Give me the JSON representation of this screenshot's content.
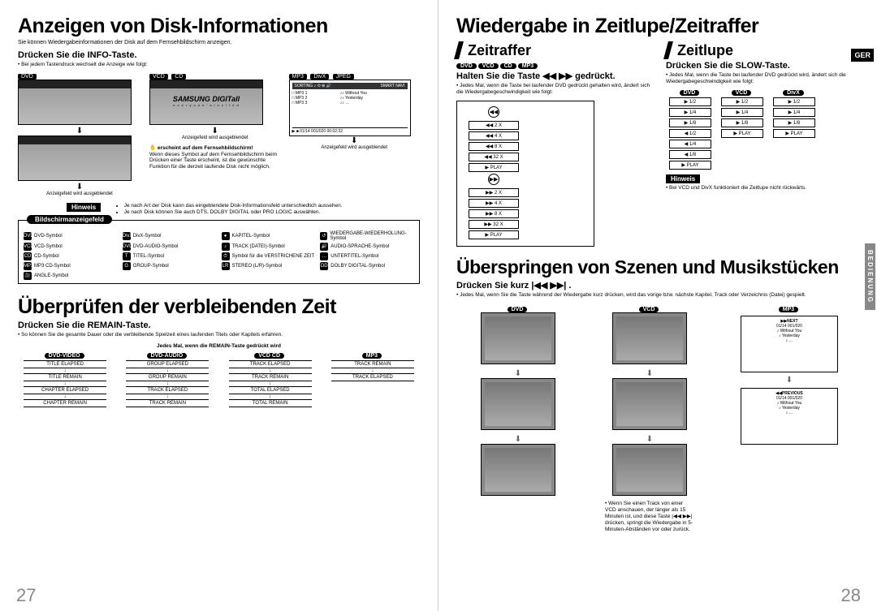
{
  "left": {
    "h1": "Anzeigen von Disk-Informationen",
    "h1sub": "Sie können Wiedergabeinformationen der Disk auf dem Fernsehbildschirm anzeigen.",
    "infoLine": "Drücken Sie die INFO-Taste.",
    "infoBullet": "• Bei jedem Tastendruck wechselt die Anzeige wie folgt:",
    "dvdTag": "DVD",
    "vcdTag": "VCD",
    "cdTag": "CD",
    "mp3Tag": "MP3",
    "divxTag": "DivX",
    "jpegTag": "JPEG",
    "ausblend": "Anzeigefeld wird ausgeblendet",
    "samsungLogo": "SAMSUNG DIGITall",
    "samsungSub": "e v e r y o n e ' s  i n v i t e d",
    "tvNote": "erscheint auf dem Fernsehbildschirm!",
    "tvNoteBody": "Wenn dieses Symbol auf dem Fernsehbildschirm beim Drücken einer Taste erscheint, ist die gewünschte Funktion für die derzeit laufende Disk nicht möglich.",
    "hinweis": "Hinweis",
    "hinweisBullets": [
      "Je nach Art der Disk kann das eingeblendete Disk-Informationsfeld unterschiedlich aussehen.",
      "Je nach Disk können Sie auch DTS, DOLBY DIGITAL oder PRO LOGIC auswählen."
    ],
    "symTab": "Bildschirmanzeigefeld",
    "symbols": [
      {
        "t": "DVD",
        "l": "DVD-Symbol"
      },
      {
        "t": "DivX",
        "l": "DivX-Symbol"
      },
      {
        "t": "●",
        "l": "KAPITEL-Symbol"
      },
      {
        "t": "↺",
        "l": "WIEDERGABE-WIEDERHOLUNG-Symbol"
      },
      {
        "t": "VCD",
        "l": "VCD-Symbol"
      },
      {
        "t": "DVD AUDIO",
        "l": "DVD-AUDIO-Symbol"
      },
      {
        "t": "♪",
        "l": "TRACK (DATEI)-Symbol"
      },
      {
        "t": "🔊",
        "l": "AUDIO-SPRACHE-Symbol"
      },
      {
        "t": "CD",
        "l": "CD-Symbol"
      },
      {
        "t": "T",
        "l": "TITEL-Symbol"
      },
      {
        "t": "⏱",
        "l": "Symbol für die VERSTRICHENE ZEIT"
      },
      {
        "t": "…",
        "l": "UNTERTITEL-Symbol"
      },
      {
        "t": "MP3",
        "l": "MP3 CD-Symbol"
      },
      {
        "t": "G",
        "l": "GROUP-Symbol"
      },
      {
        "t": "LR",
        "l": "STEREO (L/R)-Symbol"
      },
      {
        "t": "DD",
        "l": "DOLBY DIGITAL-Symbol"
      },
      {
        "t": "🎥",
        "l": "ANGLE-Symbol"
      }
    ],
    "h2": "Überprüfen der verbleibenden Zeit",
    "remainTitle": "Drücken Sie die REMAIN-Taste.",
    "remainBullet": "• So können Sie die gesamte Dauer oder die verbleibende Spielzeit eines laufenden Titels oder Kapitels erfahren.",
    "remainSub": "Jedes Mal, wenn die REMAIN-Taste gedrückt wird",
    "remainCols": [
      {
        "hdr": "DVD-VIDEO",
        "items": [
          "TITLE ELAPSED",
          "TITLE REMAIN",
          "CHAPTER ELAPSED",
          "CHAPTER REMAIN"
        ]
      },
      {
        "hdr": "DVD-AUDIO",
        "items": [
          "GROUP ELAPSED",
          "GROUP REMAIN",
          "TRACK ELAPSED",
          "TRACK REMAIN"
        ]
      },
      {
        "hdr": "VCD  CD",
        "items": [
          "TRACK ELAPSED",
          "TRACK REMAIN",
          "TOTAL ELAPSED",
          "TOTAL REMAIN"
        ]
      },
      {
        "hdr": "MP3",
        "items": [
          "TRACK REMAIN",
          "TRACK ELAPSED"
        ]
      }
    ],
    "pnum": "27"
  },
  "right": {
    "h1": "Wiedergabe in Zeitlupe/Zeitraffer",
    "zr": "Zeitraffer",
    "zl": "Zeitlupe",
    "zrTags": [
      "DVD",
      "VCD",
      "CD",
      "MP3"
    ],
    "zrLine": "Halten Sie die Taste ◀◀ ▶▶ gedrückt.",
    "zrBullet": "• Jedes Mal, wenn die Taste bei laufender DVD gedrückt gehalten wird, ändert sich die Wiedergabegeschwindigkeit wie folgt:",
    "speedsBack": [
      "◀◀ 2 X",
      "◀◀ 4 X",
      "◀◀ 8 X",
      "◀◀ 32 X",
      "▶ PLAY"
    ],
    "speedsFwd": [
      "▶▶ 2 X",
      "▶▶ 4 X",
      "▶▶ 8 X",
      "▶▶ 32 X",
      "▶ PLAY"
    ],
    "zlLine": "Drücken Sie die SLOW-Taste.",
    "zlBullet": "• Jedes Mal, wenn die Taste bei laufender DVD gedrückt wird, ändert sich die Wiedergabegeschwindigkeit wie folgt:",
    "slowCols": [
      {
        "hdr": "DVD",
        "items": [
          "▶ 1/2",
          "▶ 1/4",
          "▶ 1/8",
          "◀ 1/2",
          "◀ 1/4",
          "◀ 1/8",
          "▶ PLAY"
        ]
      },
      {
        "hdr": "VCD",
        "items": [
          "▶ 1/2",
          "▶ 1/4",
          "▶ 1/8",
          "▶ PLAY"
        ]
      },
      {
        "hdr": "DivX",
        "items": [
          "▶ 1/2",
          "▶ 1/4",
          "▶ 1/8",
          "▶ PLAY"
        ]
      }
    ],
    "hinweis": "Hinweis",
    "zlHinweis": "• Bei VCD und DivX funktioniert die Zeitlupe nicht rückwärts.",
    "skipH1": "Überspringen von Szenen und Musikstücken",
    "skipLine": "Drücken Sie kurz  |◀◀ ▶▶| .",
    "skipBullet": "• Jedes Mal, wenn Sie die Taste während der Wiedergabe kurz drücken, wird das vorige bzw. nächste Kapitel, Track oder Verzeichnis (Datei) gespielt.",
    "skipCols": [
      "DVD",
      "VCD",
      "MP3"
    ],
    "skipNote": "• Wenn Sie einen Track von einer VCD anschauen, der länger als 15 Minuten ist, und diese Taste  |◀◀ ▶▶|  drücken, springt die Wiedergabe in 5-Minuten-Abständen vor oder zurück.",
    "mp3Next": "▶▶NEXT",
    "mp3Prev": "◀◀PREVIOUS",
    "ger": "GER",
    "side": "BEDIENUNG",
    "pnum": "28"
  }
}
